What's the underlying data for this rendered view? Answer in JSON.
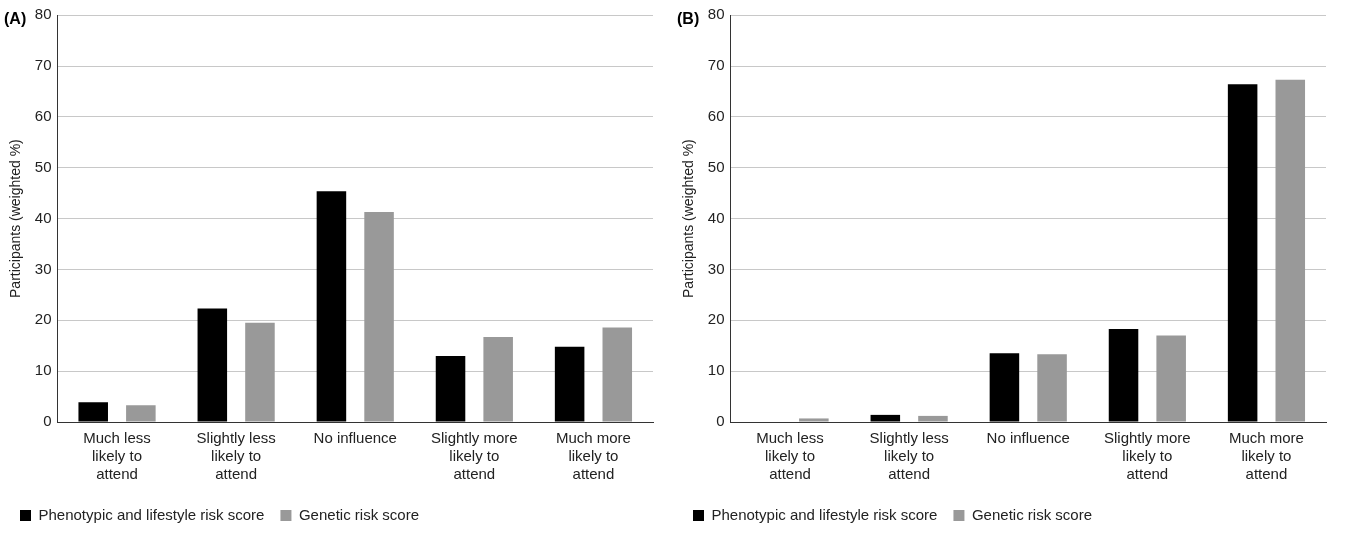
{
  "chart_data": [
    {
      "type": "bar",
      "title": "(A)",
      "ylabel": "Participants (weighted %)",
      "categories": [
        "Much less likely to attend",
        "Slightly less likely to attend",
        "No influence",
        "Slightly more likely to attend",
        "Much more likely to attend"
      ],
      "series": [
        {
          "name": "Phenotypic and lifestyle risk score",
          "color": "#000000",
          "values": [
            3.9,
            22.3,
            45.4,
            13.0,
            14.8
          ]
        },
        {
          "name": "Genetic risk score",
          "color": "#999999",
          "values": [
            3.3,
            19.5,
            41.3,
            16.7,
            18.6
          ]
        }
      ],
      "ylim": [
        0,
        80
      ],
      "yticks": [
        0,
        10,
        20,
        30,
        40,
        50,
        60,
        70,
        80
      ],
      "grid": "y",
      "legend": "bottom"
    },
    {
      "type": "bar",
      "title": "(B)",
      "ylabel": "Participants (weighted %)",
      "categories": [
        "Much less likely to attend",
        "Slightly less likely to attend",
        "No influence",
        "Slightly more likely to attend",
        "Much more likely to attend"
      ],
      "series": [
        {
          "name": "Phenotypic and lifestyle risk score",
          "color": "#000000",
          "values": [
            0,
            1.4,
            13.5,
            18.3,
            66.4
          ]
        },
        {
          "name": "Genetic risk score",
          "color": "#999999",
          "values": [
            0.7,
            1.2,
            13.3,
            17.0,
            67.3
          ]
        }
      ],
      "ylim": [
        0,
        80
      ],
      "yticks": [
        0,
        10,
        20,
        30,
        40,
        50,
        60,
        70,
        80
      ],
      "grid": "y",
      "legend": "bottom"
    }
  ]
}
